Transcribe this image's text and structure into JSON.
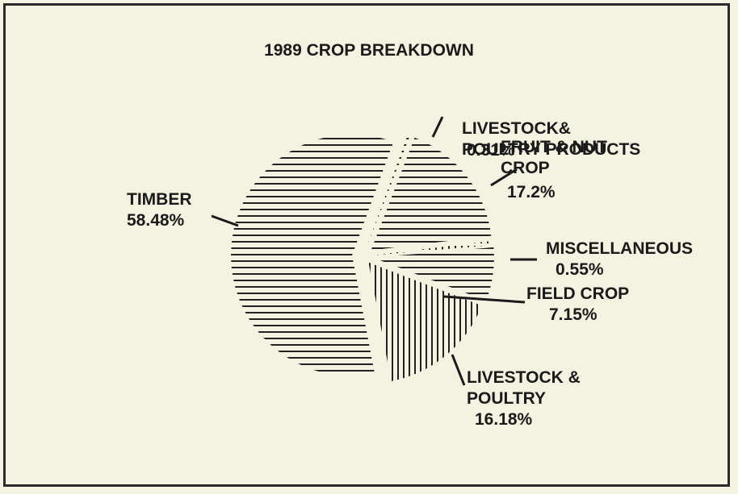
{
  "chart_data": {
    "type": "pie",
    "title": "1989 CROP BREAKDOWN",
    "categories": [
      "LIVESTOCK&\nPOULTRY PRODUCTS",
      "FRUIT & NUT\nCROP",
      "MISCELLANEOUS",
      "FIELD CROP",
      "LIVESTOCK &\nPOULTRY",
      "TIMBER"
    ],
    "values": [
      0.31,
      17.2,
      0.55,
      7.15,
      16.18,
      58.48
    ],
    "value_labels": [
      "0.31%",
      "17.2%",
      "0.55%",
      "7.15%",
      "16.18%",
      "58.48%"
    ],
    "color": "#222222"
  }
}
